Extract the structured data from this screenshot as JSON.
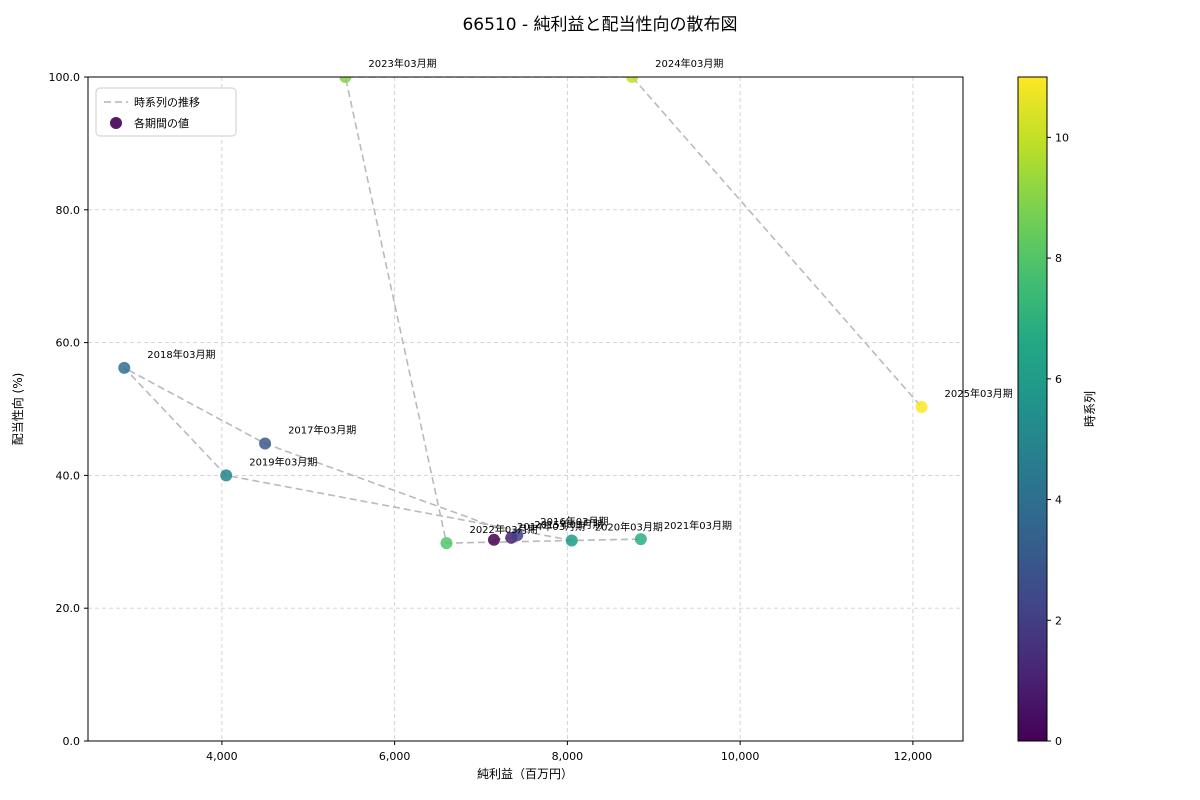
{
  "chart_data": {
    "type": "scatter",
    "title": "66510 - 純利益と配当性向の散布図",
    "xlabel": "純利益（百万円）",
    "ylabel": "配当性向 (%)",
    "xlim": [
      2450,
      12580
    ],
    "ylim": [
      0,
      100
    ],
    "xticks": [
      4000,
      6000,
      8000,
      10000,
      12000
    ],
    "xtick_labels": [
      "4,000",
      "6,000",
      "8,000",
      "10,000",
      "12,000"
    ],
    "yticks": [
      0,
      20,
      40,
      60,
      80,
      100
    ],
    "ytick_labels": [
      "0.0",
      "20.0",
      "40.0",
      "60.0",
      "80.0",
      "100.0"
    ],
    "grid": true,
    "legend": {
      "position": "upper-left",
      "line_label": "時系列の推移",
      "point_label": "各期間の値"
    },
    "colorbar": {
      "label": "時系列",
      "min": 0,
      "max": 11,
      "ticks": [
        0,
        2,
        4,
        6,
        8,
        10
      ],
      "gradient": [
        "#440154",
        "#482475",
        "#414487",
        "#355f8d",
        "#2a788e",
        "#21918c",
        "#22a884",
        "#44bf70",
        "#7ad151",
        "#bddf26",
        "#fde725"
      ]
    },
    "point_colors": [
      "#440154",
      "#482173",
      "#433e85",
      "#38598c",
      "#2d708e",
      "#25858e",
      "#1e9b8a",
      "#2ab07f",
      "#51c56a",
      "#85d54a",
      "#c2df23",
      "#fde725"
    ],
    "points": [
      {
        "label": "2014年03月期",
        "x": 7150,
        "y": 30.3,
        "t": 0
      },
      {
        "label": "2015年03月期",
        "x": 7350,
        "y": 30.6,
        "t": 1
      },
      {
        "label": "2016年03月期",
        "x": 7420,
        "y": 31.0,
        "t": 2
      },
      {
        "label": "2017年03月期",
        "x": 4500,
        "y": 44.8,
        "t": 3
      },
      {
        "label": "2018年03月期",
        "x": 2870,
        "y": 56.2,
        "t": 4
      },
      {
        "label": "2019年03月期",
        "x": 4050,
        "y": 40.0,
        "t": 5
      },
      {
        "label": "2020年03月期",
        "x": 8050,
        "y": 30.2,
        "t": 6
      },
      {
        "label": "2021年03月期",
        "x": 8850,
        "y": 30.4,
        "t": 7
      },
      {
        "label": "2022年03月期",
        "x": 6600,
        "y": 29.8,
        "t": 8
      },
      {
        "label": "2023年03月期",
        "x": 5430,
        "y": 100.0,
        "t": 9
      },
      {
        "label": "2024年03月期",
        "x": 8750,
        "y": 100.0,
        "t": 10
      },
      {
        "label": "2025年03月期",
        "x": 12100,
        "y": 50.3,
        "t": 11
      }
    ]
  }
}
